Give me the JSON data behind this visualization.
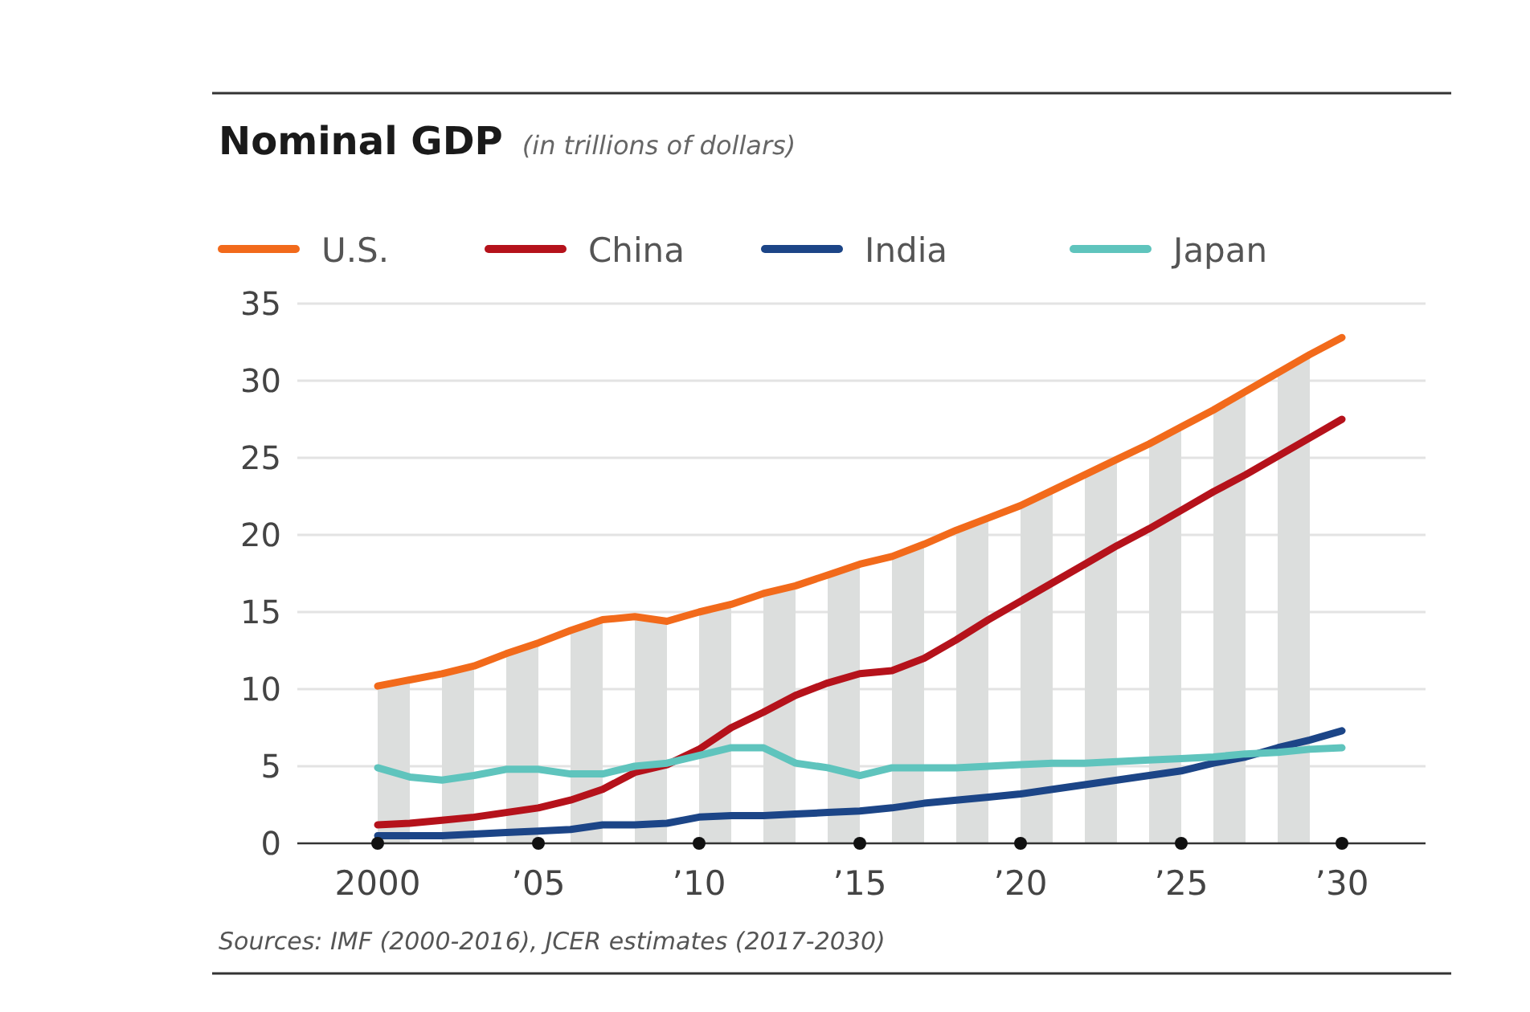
{
  "chart_data": {
    "type": "line",
    "title": "Nominal GDP",
    "subtitle": "(in trillions of dollars)",
    "x": [
      2000,
      2001,
      2002,
      2003,
      2004,
      2005,
      2006,
      2007,
      2008,
      2009,
      2010,
      2011,
      2012,
      2013,
      2014,
      2015,
      2016,
      2017,
      2018,
      2019,
      2020,
      2021,
      2022,
      2023,
      2024,
      2025,
      2026,
      2027,
      2028,
      2029,
      2030
    ],
    "series": [
      {
        "name": "U.S.",
        "color": "#f26a1b",
        "values": [
          10.2,
          10.6,
          11.0,
          11.5,
          12.3,
          13.0,
          13.8,
          14.5,
          14.7,
          14.4,
          15.0,
          15.5,
          16.2,
          16.7,
          17.4,
          18.1,
          18.6,
          19.4,
          20.3,
          21.1,
          21.9,
          22.9,
          23.9,
          24.9,
          25.9,
          27.0,
          28.1,
          29.3,
          30.5,
          31.7,
          32.8
        ]
      },
      {
        "name": "China",
        "color": "#b5121b",
        "values": [
          1.2,
          1.3,
          1.5,
          1.7,
          2.0,
          2.3,
          2.8,
          3.5,
          4.6,
          5.1,
          6.1,
          7.5,
          8.5,
          9.6,
          10.4,
          11.0,
          11.2,
          12.0,
          13.2,
          14.5,
          15.7,
          16.9,
          18.1,
          19.3,
          20.4,
          21.6,
          22.8,
          23.9,
          25.1,
          26.3,
          27.5
        ]
      },
      {
        "name": "India",
        "color": "#1c4587",
        "values": [
          0.5,
          0.5,
          0.5,
          0.6,
          0.7,
          0.8,
          0.9,
          1.2,
          1.2,
          1.3,
          1.7,
          1.8,
          1.8,
          1.9,
          2.0,
          2.1,
          2.3,
          2.6,
          2.8,
          3.0,
          3.2,
          3.5,
          3.8,
          4.1,
          4.4,
          4.7,
          5.2,
          5.6,
          6.2,
          6.7,
          7.3
        ]
      },
      {
        "name": "Japan",
        "color": "#5fc4bd",
        "values": [
          4.9,
          4.3,
          4.1,
          4.4,
          4.8,
          4.8,
          4.5,
          4.5,
          5.0,
          5.2,
          5.7,
          6.2,
          6.2,
          5.2,
          4.9,
          4.4,
          4.9,
          4.9,
          4.9,
          5.0,
          5.1,
          5.2,
          5.2,
          5.3,
          5.4,
          5.5,
          5.6,
          5.8,
          5.9,
          6.1,
          6.2
        ]
      }
    ],
    "xlim": [
      1997.5,
      2032.6
    ],
    "xticks": [
      {
        "value": 2000,
        "label": "2000"
      },
      {
        "value": 2005,
        "label": "’05"
      },
      {
        "value": 2010,
        "label": "’10"
      },
      {
        "value": 2015,
        "label": "’15"
      },
      {
        "value": 2020,
        "label": "’20"
      },
      {
        "value": 2025,
        "label": "’25"
      },
      {
        "value": 2030,
        "label": "’30"
      }
    ],
    "ylim": [
      0,
      35
    ],
    "yticks": [
      0,
      5,
      10,
      15,
      20,
      25,
      30,
      35
    ],
    "grid": "y",
    "legend": "top left",
    "marker": "none",
    "line_style": "solid",
    "bands": [
      {
        "axis": "x",
        "from": 2000,
        "to": 2001,
        "color": "#dcdedd"
      },
      {
        "axis": "x",
        "from": 2002,
        "to": 2003,
        "color": "#dcdedd"
      },
      {
        "axis": "x",
        "from": 2004,
        "to": 2005,
        "color": "#dcdedd"
      },
      {
        "axis": "x",
        "from": 2006,
        "to": 2007,
        "color": "#dcdedd"
      },
      {
        "axis": "x",
        "from": 2008,
        "to": 2009,
        "color": "#dcdedd"
      },
      {
        "axis": "x",
        "from": 2010,
        "to": 2011,
        "color": "#dcdedd"
      },
      {
        "axis": "x",
        "from": 2012,
        "to": 2013,
        "color": "#dcdedd"
      },
      {
        "axis": "x",
        "from": 2014,
        "to": 2015,
        "color": "#dcdedd"
      },
      {
        "axis": "x",
        "from": 2016,
        "to": 2017,
        "color": "#dcdedd"
      },
      {
        "axis": "x",
        "from": 2018,
        "to": 2019,
        "color": "#dcdedd"
      },
      {
        "axis": "x",
        "from": 2020,
        "to": 2021,
        "color": "#dcdedd"
      },
      {
        "axis": "x",
        "from": 2022,
        "to": 2023,
        "color": "#dcdedd"
      },
      {
        "axis": "x",
        "from": 2024,
        "to": 2025,
        "color": "#dcdedd"
      },
      {
        "axis": "x",
        "from": 2026,
        "to": 2027,
        "color": "#dcdedd"
      },
      {
        "axis": "x",
        "from": 2028,
        "to": 2029,
        "color": "#dcdedd"
      }
    ],
    "annotations": [
      "Sources: IMF (2000-2016), JCER estimates (2017-2030)"
    ]
  }
}
